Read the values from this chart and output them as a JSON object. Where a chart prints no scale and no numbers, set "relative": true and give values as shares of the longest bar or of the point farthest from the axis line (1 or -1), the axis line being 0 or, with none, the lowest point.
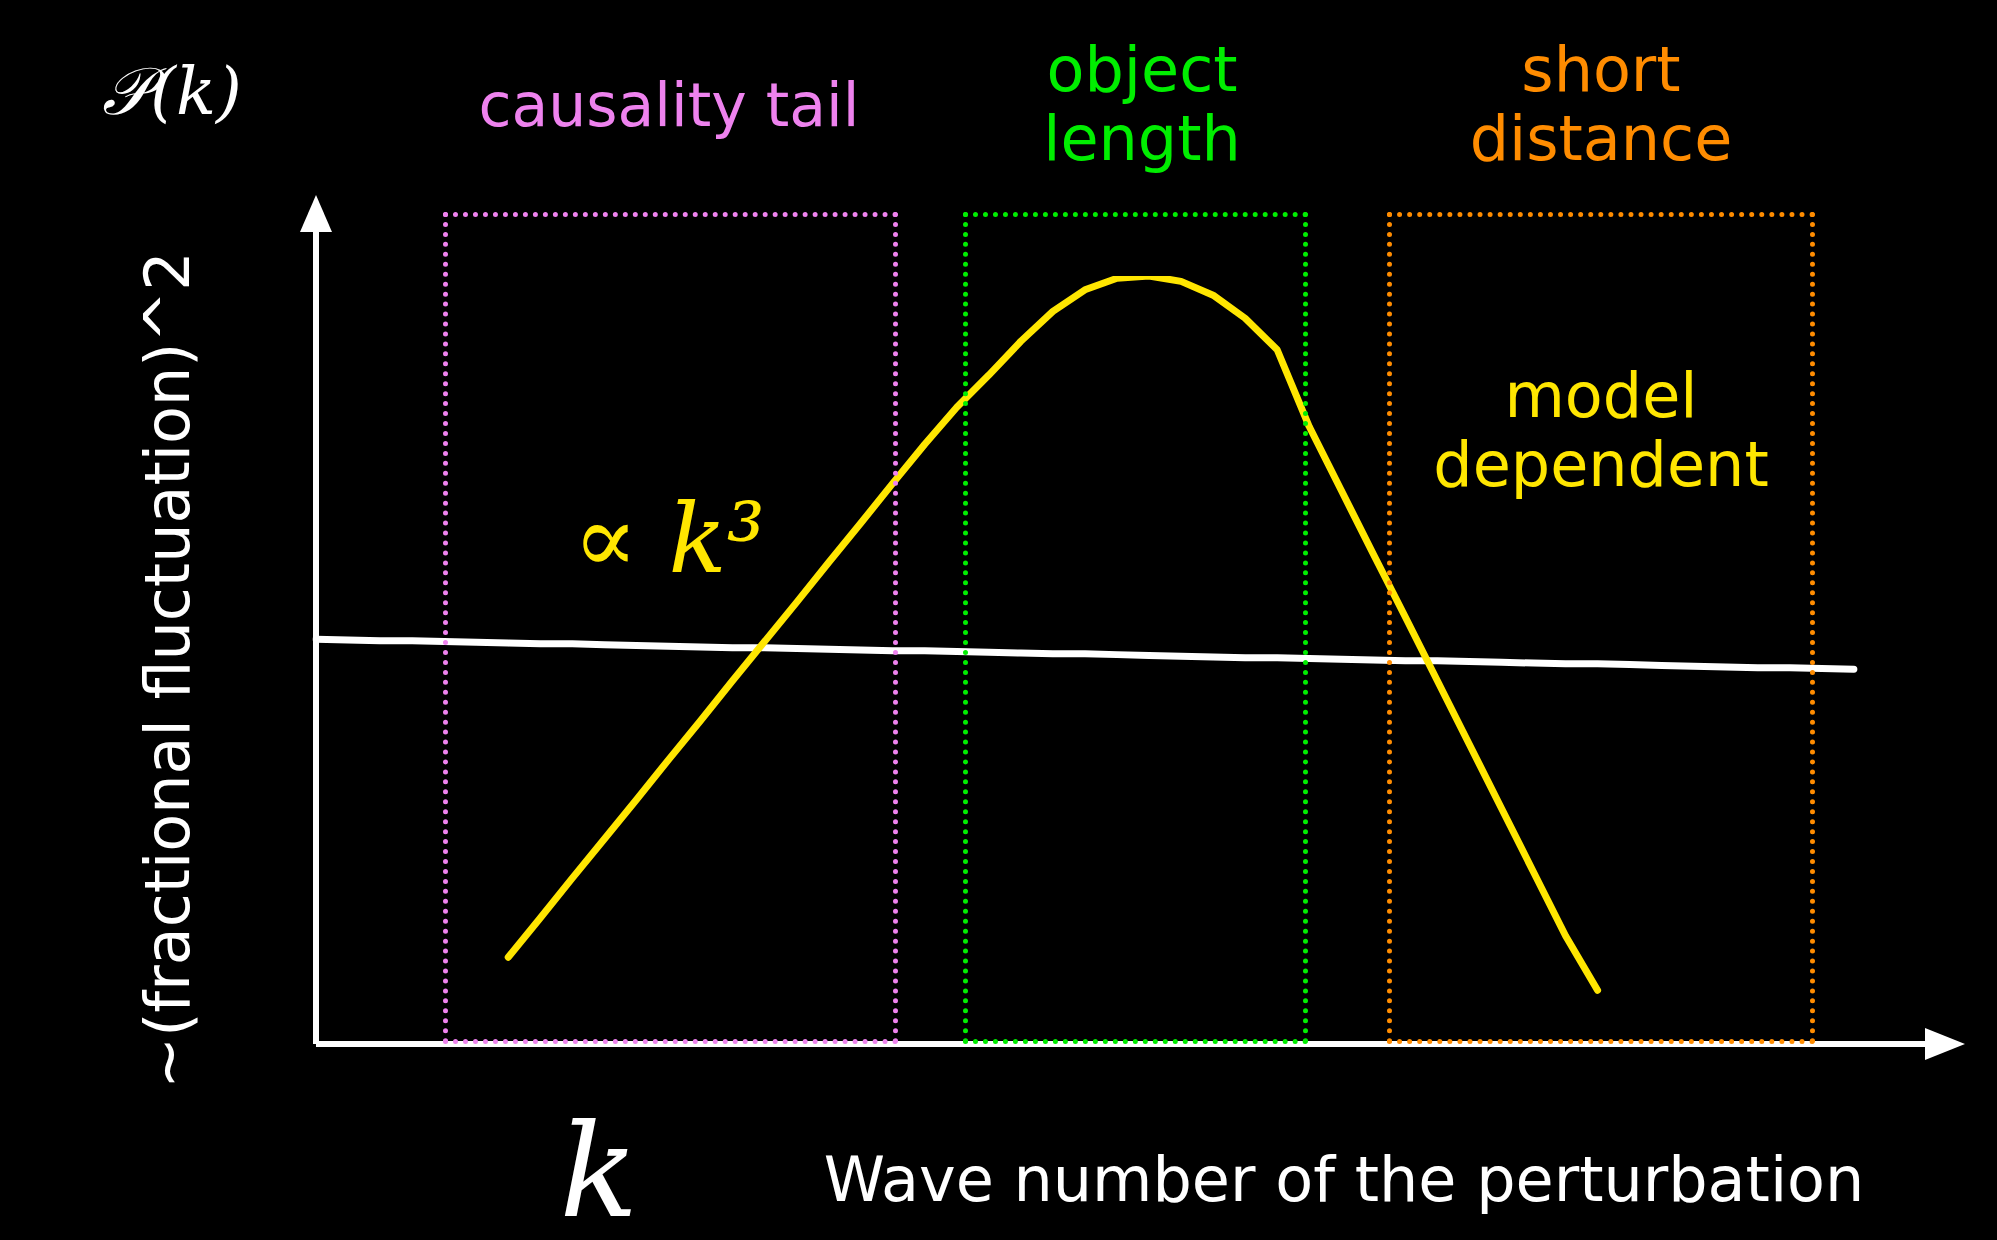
{
  "chart_data": {
    "type": "line",
    "relative": true,
    "xlabel": "Wave number of the perturbation",
    "ylabel": "~(fractional fluctuation)^2",
    "categories": [
      null,
      null,
      null,
      null,
      null,
      null,
      null,
      null,
      null,
      null,
      null,
      null,
      null,
      null,
      null,
      null,
      null,
      null,
      null,
      null,
      null,
      null,
      null,
      null,
      null,
      null,
      null,
      null,
      null,
      null,
      null,
      null,
      null,
      null,
      null,
      null,
      null,
      null,
      null,
      null,
      null,
      null,
      null,
      null,
      null,
      null,
      null,
      null,
      null,
      null,
      null,
      null
    ],
    "series": [
      {
        "color": "#ffe600",
        "values": [
          null,
          null,
          null,
          null,
          null,
          null,
          0.113,
          0.164,
          0.216,
          0.267,
          0.318,
          0.37,
          0.421,
          0.473,
          0.524,
          0.575,
          0.627,
          0.678,
          0.73,
          0.781,
          0.829,
          0.871,
          0.915,
          0.954,
          0.982,
          0.997,
          1,
          0.993,
          0.975,
          0.945,
          0.904,
          0.804,
          0.721,
          0.638,
          0.556,
          0.473,
          0.39,
          0.307,
          0.224,
          0.141,
          0.07,
          null,
          null,
          null,
          null,
          null,
          null,
          null,
          null,
          null,
          null,
          null
        ]
      },
      {
        "color": "#ffffff",
        "values": [
          0.527,
          0.526,
          0.525,
          0.525,
          0.524,
          0.523,
          0.522,
          0.521,
          0.521,
          0.52,
          0.519,
          0.518,
          0.517,
          0.516,
          0.516,
          0.515,
          0.514,
          0.513,
          0.512,
          0.512,
          0.511,
          0.51,
          0.509,
          0.508,
          0.508,
          0.507,
          0.506,
          0.505,
          0.504,
          0.503,
          0.503,
          0.502,
          0.501,
          0.5,
          0.499,
          0.499,
          0.498,
          0.497,
          0.496,
          0.495,
          0.495,
          0.494,
          0.493,
          0.492,
          0.491,
          0.49,
          0.49,
          0.489,
          0.488,
          null,
          null,
          null
        ]
      }
    ],
    "annotations": [
      "𝒫(k)",
      "causality tail",
      "object\nlength",
      "short\ndistance",
      "model\ndependent",
      "∝ k³",
      "k"
    ],
    "legend": false
  }
}
